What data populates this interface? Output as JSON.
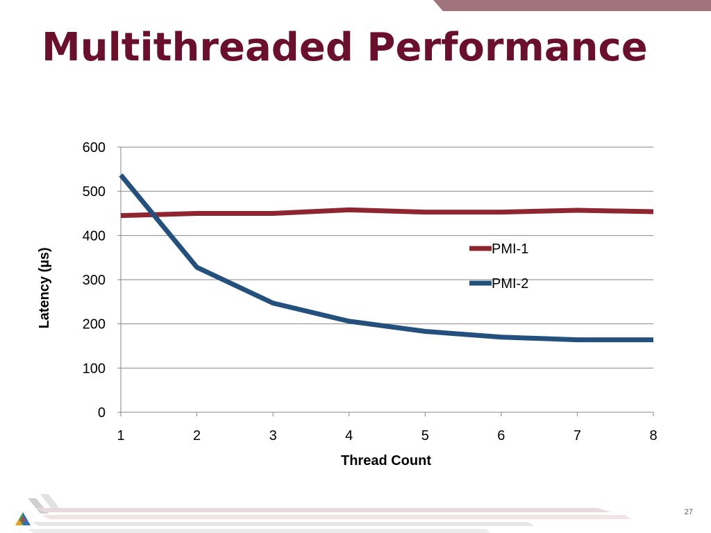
{
  "slide": {
    "title": "Multithreaded Performance",
    "page_number": "27"
  },
  "colors": {
    "title": "#6a0f2c",
    "pmi1": "#8e2632",
    "pmi2": "#24507e",
    "grid": "#868686"
  },
  "chart_data": {
    "type": "line",
    "title": "",
    "xlabel": "Thread Count",
    "ylabel": "Latency (µs)",
    "categories": [
      "1",
      "2",
      "3",
      "4",
      "5",
      "6",
      "7",
      "8"
    ],
    "ylim": [
      0,
      600
    ],
    "yticks": [
      0,
      100,
      200,
      300,
      400,
      500,
      600
    ],
    "grid": true,
    "legend_position": "right",
    "series": [
      {
        "name": "PMI-1",
        "color": "#8e2632",
        "values": [
          445,
          450,
          450,
          458,
          453,
          453,
          457,
          454
        ]
      },
      {
        "name": "PMI-2",
        "color": "#24507e",
        "values": [
          537,
          328,
          247,
          206,
          183,
          170,
          164,
          164
        ]
      }
    ]
  }
}
